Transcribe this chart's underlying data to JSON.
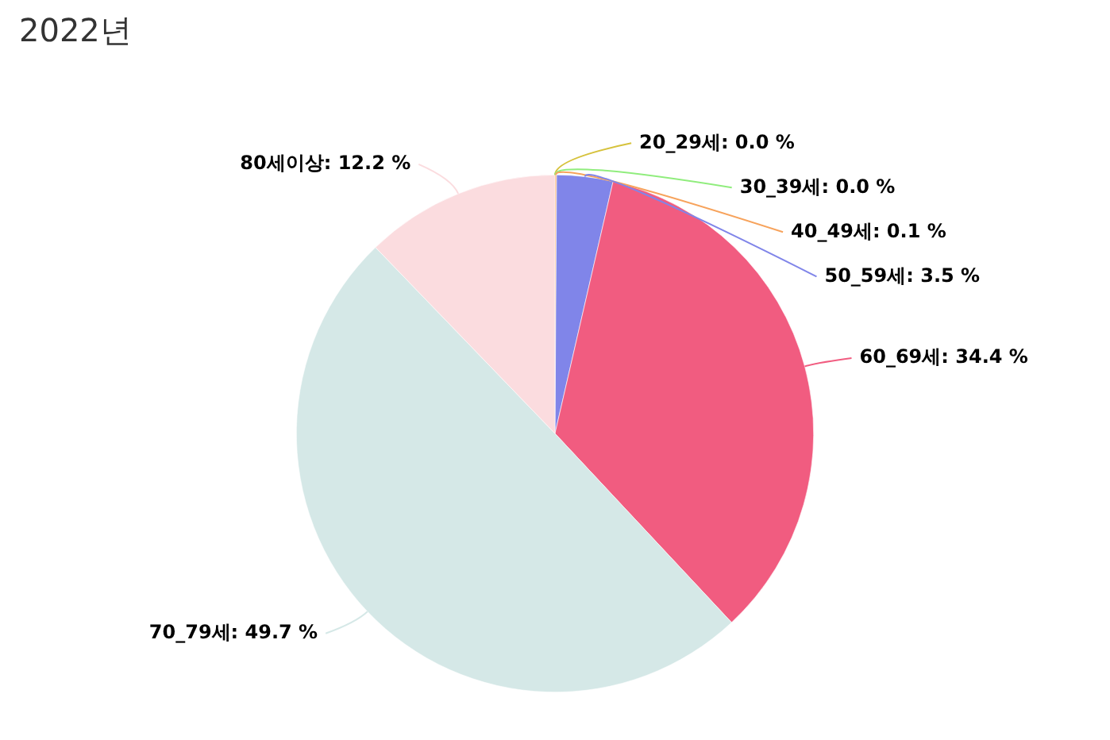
{
  "chart_data": {
    "type": "pie",
    "title": "2022년",
    "categories": [
      "20_29세",
      "30_39세",
      "40_49세",
      "50_59세",
      "60_69세",
      "70_79세",
      "80세이상"
    ],
    "values": [
      0.0,
      0.0,
      0.1,
      3.5,
      34.4,
      49.7,
      12.2
    ],
    "value_labels": [
      ": 0.0 %",
      ": 0.0 %",
      ": 0.1 %",
      ": 3.5 %",
      ": 34.4 %",
      ": 49.7 %",
      ": 12.2 %"
    ],
    "colors": [
      "#d6c23c",
      "#90ed7d",
      "#f7a35c",
      "#8085e9",
      "#f15c80",
      "#d5e8e7",
      "#fbdcdf"
    ],
    "legend": false
  }
}
